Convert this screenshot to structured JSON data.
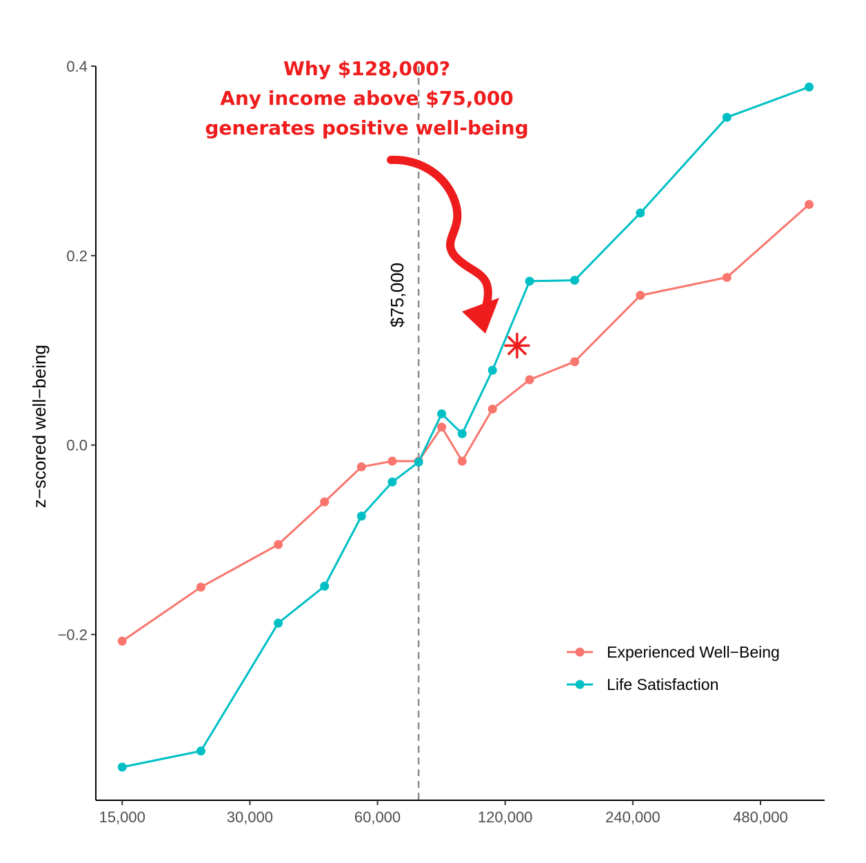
{
  "chart_data": {
    "type": "line",
    "title": "",
    "xlabel": "",
    "ylabel": "z−scored well−being",
    "x_scale": "log",
    "xlim": [
      13000,
      680000
    ],
    "ylim": [
      -0.375,
      0.4
    ],
    "x_ticks": [
      15000,
      30000,
      60000,
      120000,
      240000,
      480000
    ],
    "x_tick_labels": [
      "15,000",
      "30,000",
      "60,000",
      "120,000",
      "240,000",
      "480,000"
    ],
    "y_ticks": [
      -0.2,
      0.0,
      0.2,
      0.4
    ],
    "y_tick_labels": [
      "−0.2",
      "0.0",
      "0.2",
      "0.4"
    ],
    "grid": false,
    "legend_position": "bottom-right",
    "vline": {
      "x": 75000,
      "label": "$75,000",
      "style": "dashed"
    },
    "series": [
      {
        "name": "Experienced Well−Being",
        "color": "#f8766d",
        "x": [
          15000,
          23000,
          35000,
          45000,
          55000,
          65000,
          75000,
          85000,
          95000,
          112000,
          137000,
          175000,
          250000,
          400000,
          625000
        ],
        "y": [
          -0.207,
          -0.15,
          -0.105,
          -0.06,
          -0.023,
          -0.017,
          -0.017,
          0.019,
          -0.017,
          0.038,
          0.069,
          0.088,
          0.158,
          0.177,
          0.254
        ]
      },
      {
        "name": "Life Satisfaction",
        "color": "#00bfc4",
        "x": [
          15000,
          23000,
          35000,
          45000,
          55000,
          65000,
          75000,
          85000,
          95000,
          112000,
          137000,
          175000,
          250000,
          400000,
          625000
        ],
        "y": [
          -0.34,
          -0.323,
          -0.188,
          -0.149,
          -0.075,
          -0.039,
          -0.018,
          0.033,
          0.012,
          0.079,
          0.173,
          0.174,
          0.245,
          0.346,
          0.378
        ]
      }
    ],
    "annotation": {
      "lines": [
        "Why $128,000?",
        "Any income above $75,000",
        "generates positive well-being"
      ],
      "color": "#ee1c1c",
      "marker_x": 128000,
      "marker_y": 0.105
    }
  }
}
